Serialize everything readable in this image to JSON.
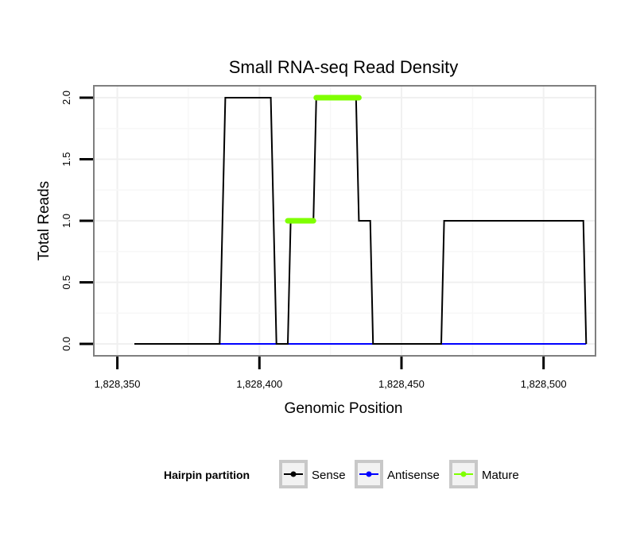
{
  "chart_data": {
    "type": "line",
    "title": "Small RNA-seq Read Density",
    "xlabel": "Genomic Position",
    "ylabel": "Total Reads",
    "xlim": [
      1828342,
      1828518
    ],
    "ylim": [
      -0.09,
      2.09
    ],
    "x_ticks": [
      1828350,
      1828400,
      1828450,
      1828500
    ],
    "x_tick_labels": [
      "1,828,350",
      "1,828,400",
      "1,828,450",
      "1,828,500"
    ],
    "y_ticks": [
      0,
      0.5,
      1,
      1.5,
      2
    ],
    "y_tick_labels": [
      "0.0",
      "0.5",
      "1.0",
      "1.5",
      "2.0"
    ],
    "grid": true,
    "legend": {
      "title": "Hairpin partition",
      "position": "bottom",
      "entries": [
        "Sense",
        "Antisense",
        "Mature"
      ]
    },
    "series": [
      {
        "name": "Sense",
        "color": "#000000",
        "x": [
          1828356,
          1828386,
          1828388,
          1828404,
          1828406,
          1828410,
          1828411,
          1828419,
          1828420,
          1828434,
          1828435,
          1828439,
          1828440,
          1828464,
          1828465,
          1828514,
          1828515
        ],
        "y": [
          0,
          0,
          2,
          2,
          0,
          0,
          1,
          1,
          2,
          2,
          1,
          1,
          0,
          0,
          1,
          1,
          0
        ]
      },
      {
        "name": "Antisense",
        "color": "#0000ff",
        "x": [
          1828356,
          1828515
        ],
        "y": [
          0,
          0
        ]
      },
      {
        "name": "Mature",
        "color": "#7fff00",
        "segments": [
          {
            "x": [
              1828410,
              1828419
            ],
            "y": [
              1,
              1
            ]
          },
          {
            "x": [
              1828420,
              1828435
            ],
            "y": [
              2,
              2
            ]
          }
        ]
      }
    ]
  }
}
